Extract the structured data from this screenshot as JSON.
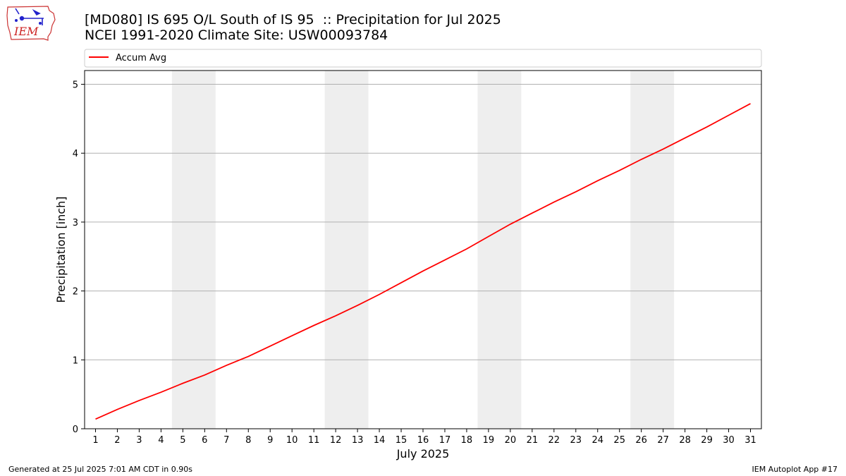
{
  "header": {
    "title_line1": "[MD080] IS 695 O/L South of IS 95  :: Precipitation for Jul 2025",
    "title_line2": "NCEI 1991-2020 Climate Site: USW00093784",
    "logo_text": "IEM"
  },
  "footer": {
    "generated": "Generated at 25 Jul 2025 7:01 AM CDT in 0.90s",
    "app": "IEM Autoplot App #17"
  },
  "chart_data": {
    "type": "line",
    "xlabel": "July 2025",
    "ylabel": "Precipitation [inch]",
    "xlim": [
      0.5,
      31.5
    ],
    "ylim": [
      0,
      5.2
    ],
    "yticks": [
      0,
      1,
      2,
      3,
      4,
      5
    ],
    "categories": [
      "1",
      "2",
      "3",
      "4",
      "5",
      "6",
      "7",
      "8",
      "9",
      "10",
      "11",
      "12",
      "13",
      "14",
      "15",
      "16",
      "17",
      "18",
      "19",
      "20",
      "21",
      "22",
      "23",
      "24",
      "25",
      "26",
      "27",
      "28",
      "29",
      "30",
      "31"
    ],
    "weekend_bands": [
      [
        4.5,
        6.5
      ],
      [
        11.5,
        13.5
      ],
      [
        18.5,
        20.5
      ],
      [
        25.5,
        27.5
      ]
    ],
    "grid": "y",
    "legend": {
      "placement": "top",
      "entries": [
        "Accum Avg"
      ]
    },
    "colors": {
      "line": "#ff0000",
      "band": "#eeeeee",
      "grid": "#b0b0b0"
    },
    "series": [
      {
        "name": "Accum Avg",
        "values": [
          0.14,
          0.28,
          0.41,
          0.53,
          0.66,
          0.78,
          0.92,
          1.05,
          1.2,
          1.35,
          1.5,
          1.64,
          1.79,
          1.95,
          2.12,
          2.29,
          2.45,
          2.61,
          2.79,
          2.97,
          3.13,
          3.29,
          3.44,
          3.6,
          3.75,
          3.91,
          4.06,
          4.22,
          4.38,
          4.55,
          4.72
        ]
      }
    ]
  }
}
